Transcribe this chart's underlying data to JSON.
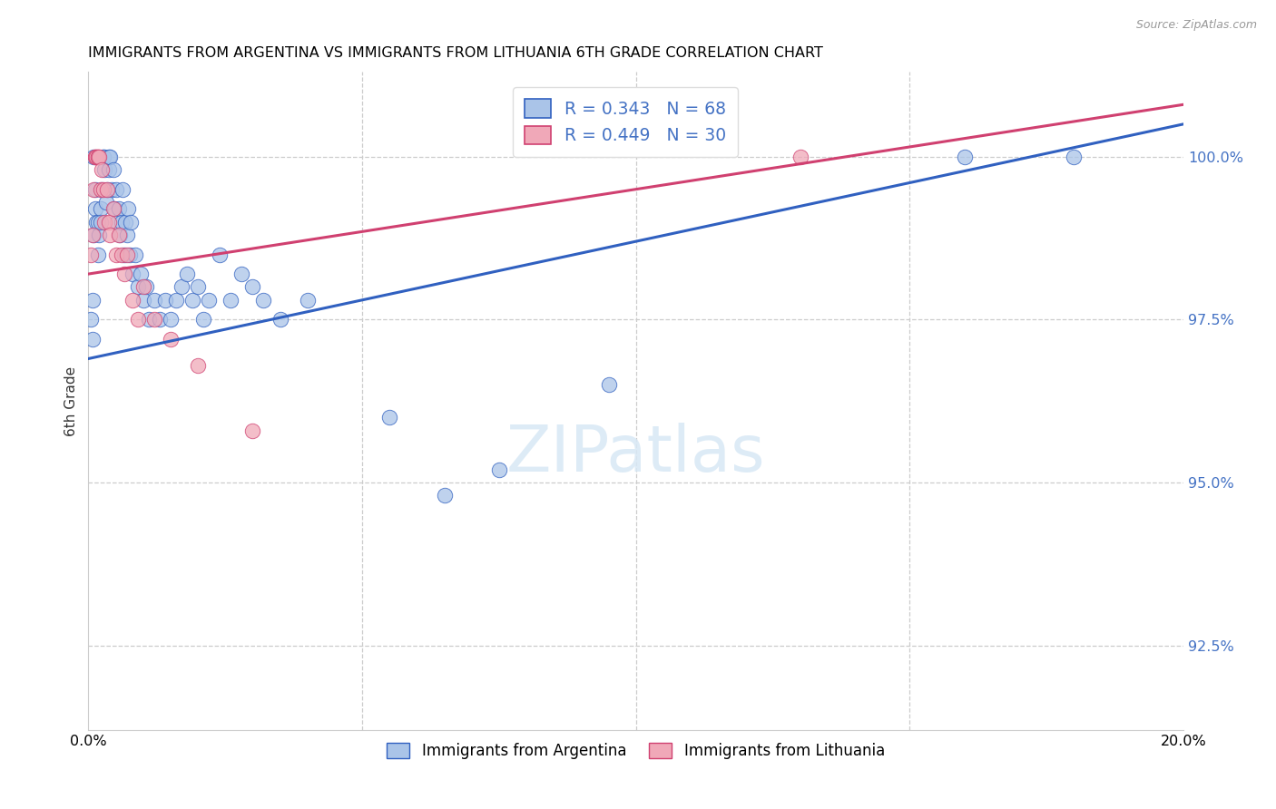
{
  "title": "IMMIGRANTS FROM ARGENTINA VS IMMIGRANTS FROM LITHUANIA 6TH GRADE CORRELATION CHART",
  "source": "Source: ZipAtlas.com",
  "ylabel": "6th Grade",
  "y_ticks": [
    92.5,
    95.0,
    97.5,
    100.0
  ],
  "y_tick_labels": [
    "92.5%",
    "95.0%",
    "97.5%",
    "100.0%"
  ],
  "x_range": [
    0.0,
    20.0
  ],
  "y_range": [
    91.2,
    101.3
  ],
  "R_argentina": 0.343,
  "N_argentina": 68,
  "R_lithuania": 0.449,
  "N_lithuania": 30,
  "argentina_color": "#aac4e8",
  "lithuania_color": "#f0a8b8",
  "line_argentina_color": "#3060c0",
  "line_lithuania_color": "#d04070",
  "arg_line_x0": 0.0,
  "arg_line_y0": 96.9,
  "arg_line_x1": 20.0,
  "arg_line_y1": 100.5,
  "lit_line_x0": 0.0,
  "lit_line_y0": 98.2,
  "lit_line_x1": 20.0,
  "lit_line_y1": 100.8,
  "argentina_x": [
    0.05,
    0.07,
    0.08,
    0.1,
    0.1,
    0.12,
    0.13,
    0.15,
    0.17,
    0.18,
    0.2,
    0.22,
    0.23,
    0.25,
    0.27,
    0.28,
    0.3,
    0.32,
    0.35,
    0.37,
    0.38,
    0.4,
    0.42,
    0.45,
    0.47,
    0.5,
    0.52,
    0.55,
    0.57,
    0.6,
    0.63,
    0.65,
    0.68,
    0.7,
    0.73,
    0.75,
    0.78,
    0.8,
    0.85,
    0.9,
    0.95,
    1.0,
    1.05,
    1.1,
    1.2,
    1.3,
    1.4,
    1.5,
    1.6,
    1.7,
    1.8,
    1.9,
    2.0,
    2.1,
    2.2,
    2.4,
    2.6,
    2.8,
    3.0,
    3.2,
    3.5,
    4.0,
    5.5,
    6.5,
    7.5,
    9.5,
    16.0,
    18.0
  ],
  "argentina_y": [
    97.5,
    97.2,
    97.8,
    98.8,
    100.0,
    99.2,
    99.5,
    99.0,
    98.5,
    99.0,
    98.8,
    99.2,
    99.0,
    99.5,
    100.0,
    100.0,
    99.8,
    99.3,
    99.5,
    99.8,
    100.0,
    100.0,
    99.5,
    99.8,
    99.2,
    99.5,
    99.0,
    99.2,
    98.8,
    99.0,
    99.5,
    98.5,
    99.0,
    98.8,
    99.2,
    98.5,
    99.0,
    98.2,
    98.5,
    98.0,
    98.2,
    97.8,
    98.0,
    97.5,
    97.8,
    97.5,
    97.8,
    97.5,
    97.8,
    98.0,
    98.2,
    97.8,
    98.0,
    97.5,
    97.8,
    98.5,
    97.8,
    98.2,
    98.0,
    97.8,
    97.5,
    97.8,
    96.0,
    94.8,
    95.2,
    96.5,
    100.0,
    100.0
  ],
  "lithuania_x": [
    0.05,
    0.08,
    0.1,
    0.12,
    0.13,
    0.15,
    0.17,
    0.18,
    0.2,
    0.22,
    0.25,
    0.27,
    0.3,
    0.35,
    0.38,
    0.4,
    0.45,
    0.5,
    0.55,
    0.6,
    0.65,
    0.7,
    0.8,
    0.9,
    1.0,
    1.2,
    1.5,
    2.0,
    3.0,
    13.0
  ],
  "lithuania_y": [
    98.5,
    98.8,
    99.5,
    100.0,
    100.0,
    100.0,
    100.0,
    100.0,
    100.0,
    99.5,
    99.8,
    99.5,
    99.0,
    99.5,
    99.0,
    98.8,
    99.2,
    98.5,
    98.8,
    98.5,
    98.2,
    98.5,
    97.8,
    97.5,
    98.0,
    97.5,
    97.2,
    96.8,
    95.8,
    100.0
  ],
  "legend_entries": [
    {
      "label": "Immigrants from Argentina",
      "color": "#aac4e8",
      "edge": "#3060c0"
    },
    {
      "label": "Immigrants from Lithuania",
      "color": "#f0a8b8",
      "edge": "#d04070"
    }
  ]
}
